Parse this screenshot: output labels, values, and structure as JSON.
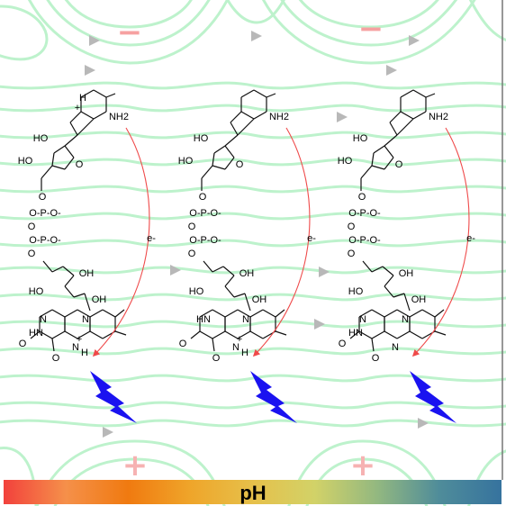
{
  "colors": {
    "field_line": "#bdf2cc",
    "arrow": "#b8b8b8",
    "minus": "#f6a1a1",
    "plus": "#f6b2b2",
    "electron_arrow": "#ef4a4a",
    "lightning": "#1a12f0",
    "proton_mark": "#e42323",
    "bond": "#111111"
  },
  "charges": {
    "top": [
      "−",
      "−"
    ],
    "bottom": [
      "+",
      "+"
    ]
  },
  "molecules": [
    {
      "adenine_protonated": true,
      "flavin_protonated": true,
      "labels": {
        "nh2": "NH2",
        "h_top": "H",
        "h_top_charge": "+",
        "ho1": "HO",
        "oh1": "OH",
        "ho2": "HO",
        "o_ring": "O",
        "o_link": "O",
        "p1": "O-P-O-",
        "p1_o": "O",
        "p2": "O-P-O-",
        "p2_o": "O",
        "oh_r1": "OH",
        "ho_r2": "HO",
        "oh_r3": "OH",
        "n10": "N",
        "n1": "N",
        "n3": "N",
        "hn": "HN",
        "o2": "O",
        "o4": "O",
        "n5": "N",
        "h5": "H",
        "h5_charge": "+",
        "electron": "e-"
      }
    },
    {
      "adenine_protonated": false,
      "flavin_protonated": true,
      "labels": {
        "nh2": "NH2",
        "ho1": "HO",
        "oh1": "OH",
        "ho2": "HO",
        "o_ring": "O",
        "o_link": "O",
        "p1": "O-P-O-",
        "p1_o": "O",
        "p2": "O-P-O-",
        "p2_o": "O",
        "oh_r1": "OH",
        "ho_r2": "HO",
        "oh_r3": "OH",
        "n10": "N",
        "n1": "HN",
        "n3": "HN",
        "o2": "O",
        "o4": "O",
        "n5": "N",
        "h5": "H",
        "h5_charge": "+",
        "electron": "e-"
      }
    },
    {
      "adenine_protonated": false,
      "flavin_protonated": false,
      "labels": {
        "nh2": "NH2",
        "ho1": "HO",
        "oh1": "OH",
        "ho2": "HO",
        "o_ring": "O",
        "o_link": "O",
        "p1": "O-P-O-",
        "p1_o": "O",
        "p2": "O-P-O-",
        "p2_o": "O",
        "oh_r1": "OH",
        "ho_r2": "HO",
        "oh_r3": "OH",
        "n10": "N",
        "n1": "N",
        "n3": "N",
        "hn": "HN",
        "o2": "O",
        "o4": "O",
        "n5": "N",
        "electron": "e-"
      }
    }
  ],
  "ph_bar": {
    "label": "pH",
    "gradient": [
      "#f2413c",
      "#f5904a",
      "#f07a10",
      "#efa52a",
      "#e6c04a",
      "#d2d268",
      "#93b880",
      "#4f8c9a",
      "#36739e"
    ]
  }
}
